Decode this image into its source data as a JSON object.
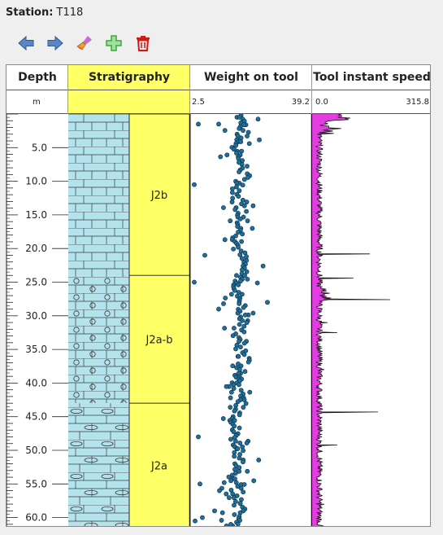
{
  "station": {
    "label": "Station:",
    "value": "T118"
  },
  "toolbar": [
    {
      "name": "back-arrow-icon",
      "color": "#5b86c6"
    },
    {
      "name": "forward-arrow-icon",
      "color": "#5b86c6"
    },
    {
      "name": "clear-brush-icon",
      "color": "#e0801c"
    },
    {
      "name": "add-plus-icon",
      "color": "#3fa53f"
    },
    {
      "name": "delete-trash-icon",
      "color": "#d01a1a"
    }
  ],
  "columns": {
    "depth": {
      "title": "Depth",
      "unit": "m"
    },
    "strat": {
      "title": "Stratigraphy",
      "color": "#ffff66"
    },
    "weight": {
      "title": "Weight on tool",
      "min": "2.5",
      "max": "39.2"
    },
    "speed": {
      "title": "Tool instant speed",
      "min": "0.0",
      "max": "315.8"
    }
  },
  "depth_axis": {
    "range": [
      0,
      61.5
    ],
    "labels": [
      "5.0",
      "10.0",
      "15.0",
      "20.0",
      "25.0",
      "30.0",
      "35.0",
      "40.0",
      "45.0",
      "50.0",
      "55.0",
      "60.0"
    ]
  },
  "strat_units": [
    {
      "name": "J2b",
      "top": 0,
      "bottom": 24.0
    },
    {
      "name": "J2a-b",
      "top": 24.0,
      "bottom": 43.0
    },
    {
      "name": "J2a",
      "top": 43.0,
      "bottom": 61.5
    }
  ],
  "lithology_color": "#b3e3ec",
  "weight_color": "#1f6f9a",
  "speed_color": "#e23de0"
}
